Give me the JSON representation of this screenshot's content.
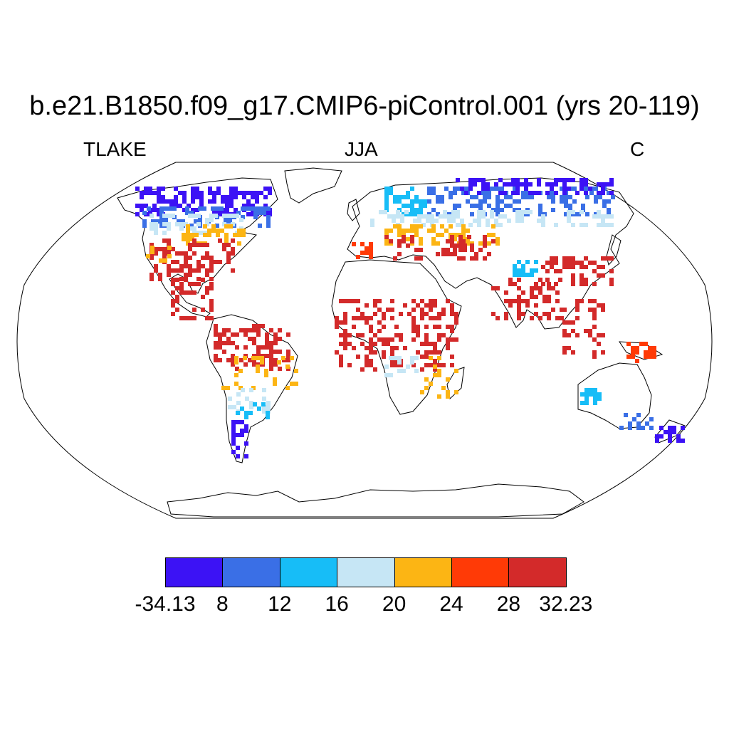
{
  "title": "b.e21.B1850.f09_g17.CMIP6-piControl.001 (yrs 20-119)",
  "subtitle_left": "TLAKE",
  "subtitle_center": "JJA",
  "subtitle_right": "C",
  "colorbar": {
    "colors": [
      "#3c12f5",
      "#3a6fe6",
      "#17bdf7",
      "#c6e6f5",
      "#fcb514",
      "#ff3a06",
      "#d32a2a"
    ],
    "labels": [
      "-34.13",
      "8",
      "12",
      "16",
      "20",
      "24",
      "28",
      "32.23"
    ]
  }
}
